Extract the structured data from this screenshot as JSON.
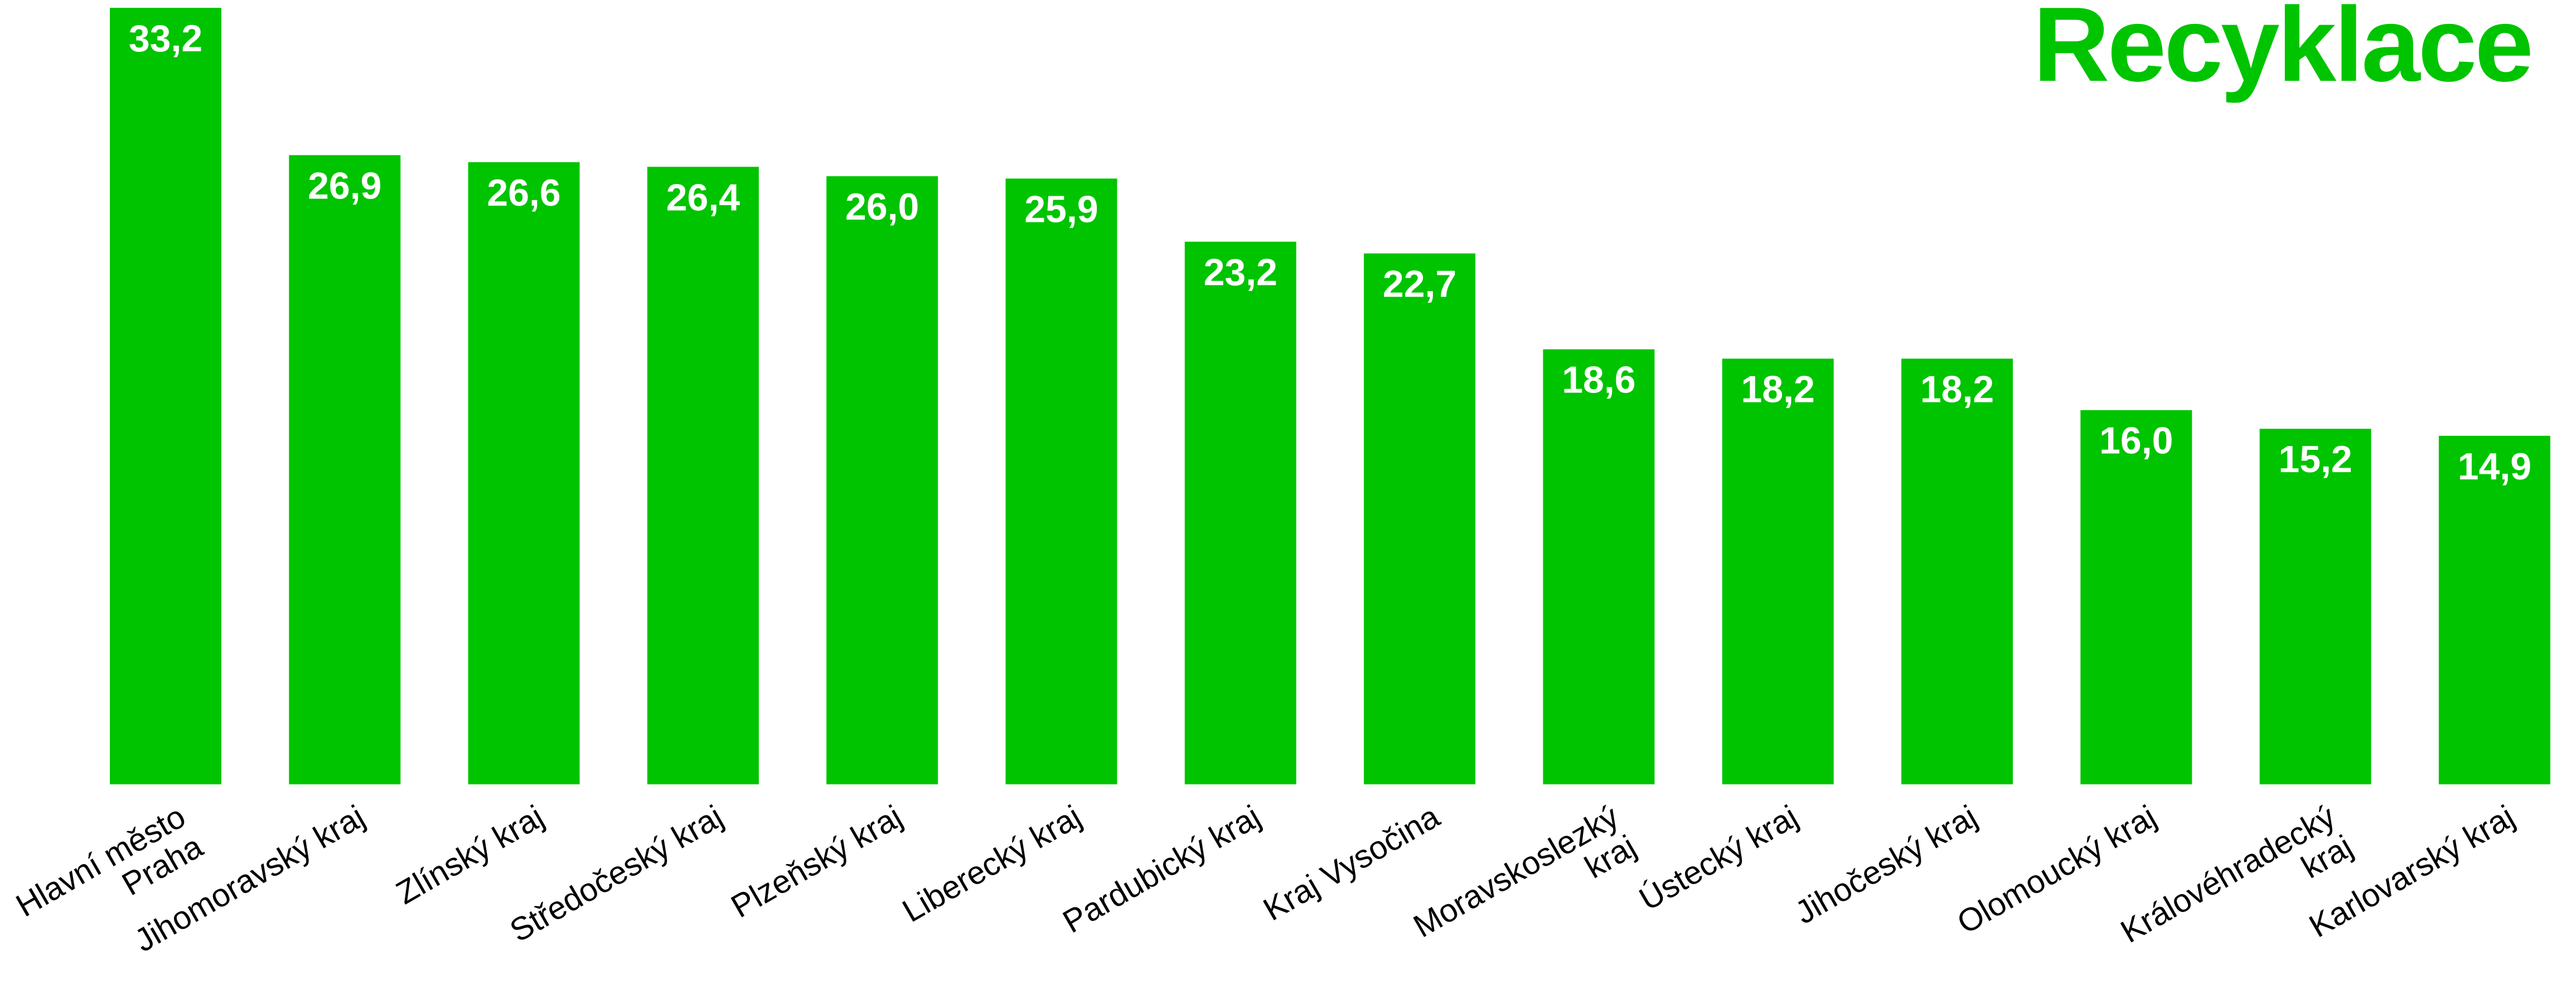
{
  "colors": {
    "bar": "#00c400",
    "title": "#00c400",
    "value_label": "#ffffff",
    "category_label": "#000000",
    "background": "#ffffff"
  },
  "chart_data": {
    "type": "bar",
    "title": "Recyklace",
    "xlabel": "",
    "ylabel": "",
    "ylim": [
      0,
      33.2
    ],
    "grid": false,
    "legend": "none",
    "categories": [
      "Hlavní město Praha",
      "Jihomoravský kraj",
      "Zlínský kraj",
      "Středočeský kraj",
      "Plzeňský kraj",
      "Liberecký kraj",
      "Pardubický kraj",
      "Kraj Vysočina",
      "Moravskoslezký kraj",
      "Ústecký kraj",
      "Jihočeský kraj",
      "Olomoucký kraj",
      "Královéhradecký kraj",
      "Karlovarský kraj"
    ],
    "category_lines": [
      [
        "Hlavní město",
        "Praha"
      ],
      [
        "Jihomoravský kraj"
      ],
      [
        "Zlínský kraj"
      ],
      [
        "Středočeský kraj"
      ],
      [
        "Plzeňský kraj"
      ],
      [
        "Liberecký kraj"
      ],
      [
        "Pardubický kraj"
      ],
      [
        "Kraj Vysočina"
      ],
      [
        "Moravskoslezký",
        "kraj"
      ],
      [
        "Ústecký kraj"
      ],
      [
        "Jihočeský kraj"
      ],
      [
        "Olomoucký kraj"
      ],
      [
        "Královéhradecký",
        "kraj"
      ],
      [
        "Karlovarský kraj"
      ]
    ],
    "values": [
      33.2,
      26.9,
      26.6,
      26.4,
      26.0,
      25.9,
      23.2,
      22.7,
      18.6,
      18.2,
      18.2,
      16.0,
      15.2,
      14.9
    ],
    "value_labels": [
      "33,2",
      "26,9",
      "26,6",
      "26,4",
      "26,0",
      "25,9",
      "23,2",
      "22,7",
      "18,6",
      "18,2",
      "18,2",
      "16,0",
      "15,2",
      "14,9"
    ]
  }
}
